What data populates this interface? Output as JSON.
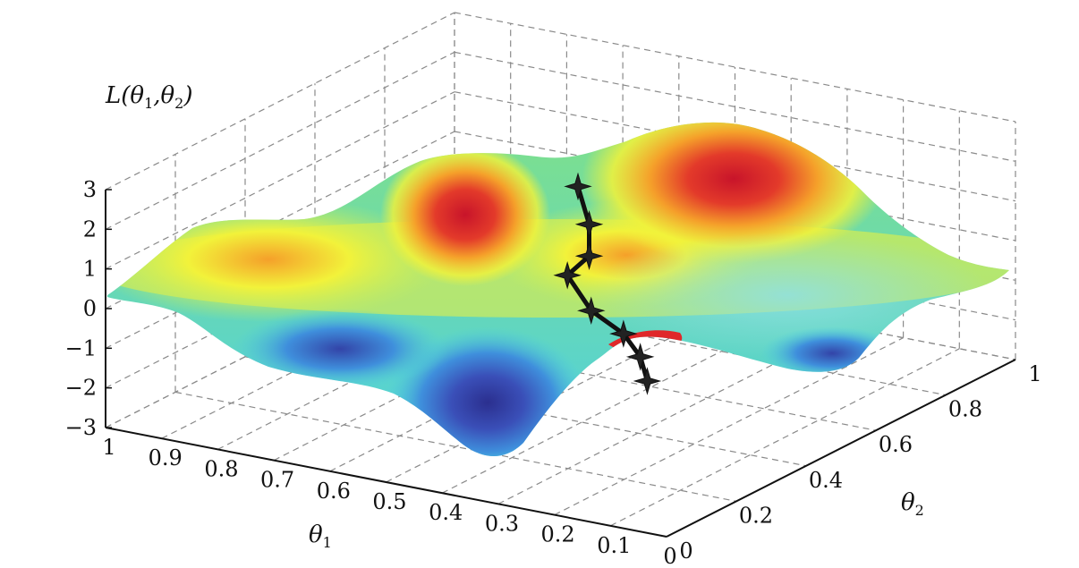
{
  "chart_data": {
    "type": "surface3d",
    "title": "",
    "zlabel": {
      "main": "L(θ",
      "sub1": "1",
      "mid": ",θ",
      "sub2": "2",
      "end": ")"
    },
    "xlabel": {
      "main": "θ",
      "sub": "1"
    },
    "ylabel": {
      "main": "θ",
      "sub": "2"
    },
    "x_ticks": [
      "1",
      "0.9",
      "0.8",
      "0.7",
      "0.6",
      "0.5",
      "0.4",
      "0.3",
      "0.2",
      "0.1",
      "0"
    ],
    "y_ticks": [
      "0",
      "0.2",
      "0.4",
      "0.6",
      "0.8",
      "1"
    ],
    "z_ticks": [
      "3",
      "2",
      "1",
      "0",
      "−1",
      "−2",
      "−3"
    ],
    "xlim": [
      1,
      0
    ],
    "ylim": [
      0,
      1
    ],
    "zlim": [
      -3,
      3
    ],
    "grid": true,
    "colormap": [
      "#2b2f8f",
      "#3f7fd4",
      "#4fd0e0",
      "#8ee39a",
      "#f2f23a",
      "#f5a02a",
      "#d81e2a"
    ],
    "descent_path": {
      "color": "#111111",
      "points": [
        {
          "theta1": 0.5,
          "theta2": 0.55,
          "L": 2.0
        },
        {
          "theta1": 0.48,
          "theta2": 0.55,
          "L": 1.1
        },
        {
          "theta1": 0.48,
          "theta2": 0.55,
          "L": 0.3
        },
        {
          "theta1": 0.55,
          "theta2": 0.6,
          "L": -0.6
        },
        {
          "theta1": 0.52,
          "theta2": 0.62,
          "L": -1.5
        },
        {
          "theta1": 0.45,
          "theta2": 0.6,
          "L": -1.8
        },
        {
          "theta1": 0.42,
          "theta2": 0.6,
          "L": -2.3
        },
        {
          "theta1": 0.42,
          "theta2": 0.62,
          "L": -3.0
        }
      ]
    }
  }
}
